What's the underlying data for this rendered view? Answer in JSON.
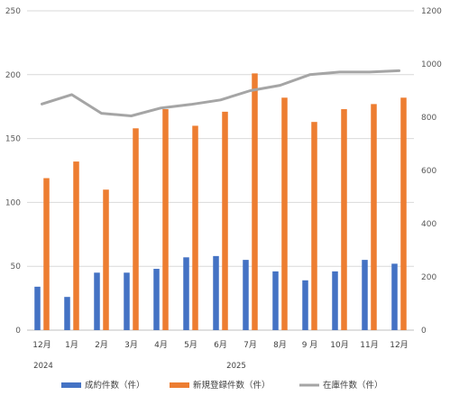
{
  "chart_data": {
    "type": "bar",
    "categories": [
      "12月",
      "1月",
      "2月",
      "3月",
      "4月",
      "5月",
      "6月",
      "7月",
      "8月",
      "9 月",
      "10月",
      "11月",
      "12月"
    ],
    "year_labels": [
      "2024",
      "2025"
    ],
    "series": [
      {
        "name": "成約件数（件）",
        "kind": "bar",
        "axis": "left",
        "color": "#4472C4",
        "values": [
          34,
          26,
          45,
          45,
          48,
          57,
          58,
          55,
          46,
          39,
          46,
          55,
          52
        ]
      },
      {
        "name": "新規登録件数（件）",
        "kind": "bar",
        "axis": "left",
        "color": "#ED7D31",
        "values": [
          119,
          132,
          110,
          158,
          173,
          160,
          171,
          201,
          182,
          163,
          173,
          177,
          182
        ]
      },
      {
        "name": "在庫件数（件）",
        "kind": "line",
        "axis": "right",
        "color": "#A5A5A5",
        "values": [
          850,
          885,
          815,
          805,
          835,
          848,
          865,
          900,
          920,
          960,
          970,
          970,
          975
        ]
      }
    ],
    "y_left": {
      "min": 0,
      "max": 250,
      "ticks": [
        0,
        50,
        100,
        150,
        200,
        250
      ]
    },
    "y_right": {
      "min": 0,
      "max": 1200,
      "ticks": [
        0,
        200,
        400,
        600,
        800,
        1000,
        1200
      ]
    },
    "grid": true,
    "legend_position": "bottom"
  }
}
